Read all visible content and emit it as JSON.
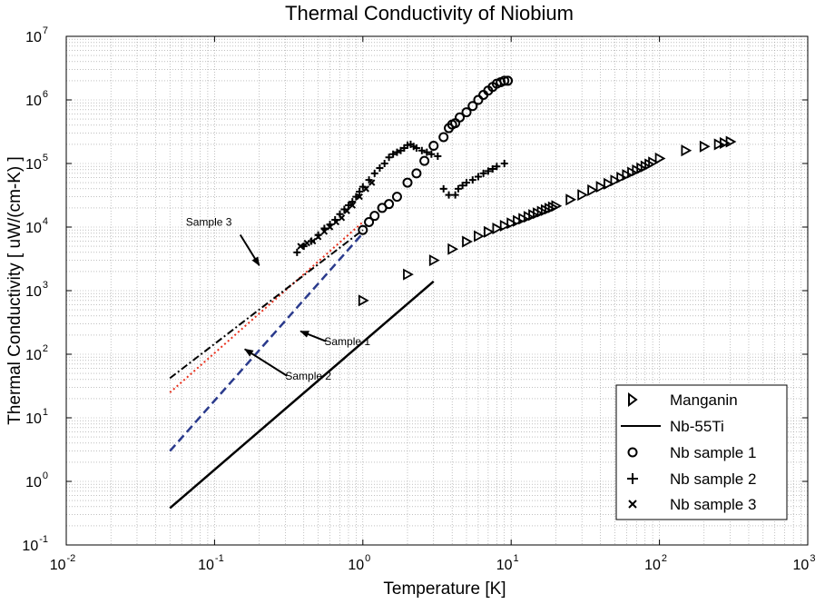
{
  "chart_data": {
    "type": "scatter",
    "title": "Thermal Conductivity of Niobium",
    "xlabel": "Temperature [K]",
    "ylabel": "Thermal Conductivity [ uW/(cm-K) ]",
    "xscale": "log",
    "yscale": "log",
    "xlim": [
      0.01,
      1000
    ],
    "ylim": [
      0.1,
      10000000
    ],
    "x_ticks": [
      {
        "base": "10",
        "exp": "-2"
      },
      {
        "base": "10",
        "exp": "-1"
      },
      {
        "base": "10",
        "exp": "0"
      },
      {
        "base": "10",
        "exp": "1"
      },
      {
        "base": "10",
        "exp": "2"
      },
      {
        "base": "10",
        "exp": "3"
      }
    ],
    "y_ticks": [
      {
        "base": "10",
        "exp": "-1"
      },
      {
        "base": "10",
        "exp": "0"
      },
      {
        "base": "10",
        "exp": "1"
      },
      {
        "base": "10",
        "exp": "2"
      },
      {
        "base": "10",
        "exp": "3"
      },
      {
        "base": "10",
        "exp": "4"
      },
      {
        "base": "10",
        "exp": "5"
      },
      {
        "base": "10",
        "exp": "6"
      },
      {
        "base": "10",
        "exp": "7"
      }
    ],
    "grid": true,
    "legend_position": "bottom-right",
    "legend": [
      {
        "label": "Manganin",
        "marker": "triangle-right"
      },
      {
        "label": "Nb-55Ti",
        "marker": "solid-line"
      },
      {
        "label": "Nb sample 1",
        "marker": "circle"
      },
      {
        "label": "Nb sample 2",
        "marker": "plus"
      },
      {
        "label": "Nb sample 3",
        "marker": "x"
      }
    ],
    "series": [
      {
        "name": "Manganin",
        "style": "triangle-right",
        "color": "#000000",
        "x": [
          1.0,
          2.0,
          3.0,
          4.0,
          5.0,
          6.0,
          7.0,
          8.0,
          9.0,
          10.0,
          11.0,
          12.0,
          13.0,
          14.0,
          15.0,
          16.0,
          17.0,
          18.0,
          19.0,
          20.0,
          25.0,
          30.0,
          35.0,
          40.0,
          45.0,
          50.0,
          55.0,
          60.0,
          65.0,
          70.0,
          75.0,
          80.0,
          85.0,
          90.0,
          100.0,
          150.0,
          200.0,
          250.0,
          273.0,
          300.0
        ],
        "y": [
          700,
          1800,
          3000,
          4500,
          5900,
          7200,
          8400,
          9500,
          10500,
          11500,
          12500,
          13500,
          14500,
          15500,
          16500,
          17500,
          18500,
          19500,
          20500,
          21500,
          27000,
          32000,
          38000,
          43000,
          48000,
          54000,
          60000,
          66000,
          72000,
          78000,
          84000,
          90000,
          97000,
          104000,
          120000,
          160000,
          185000,
          200000,
          210000,
          220000
        ]
      },
      {
        "name": "Nb-55Ti",
        "style": "solid",
        "color": "#000000",
        "x": [
          0.05,
          3.0
        ],
        "y": [
          0.38,
          1400
        ]
      },
      {
        "name": "Nb sample 1",
        "style": "circle",
        "color": "#000000",
        "x": [
          1.0,
          1.1,
          1.2,
          1.35,
          1.5,
          1.7,
          2.0,
          2.3,
          2.6,
          3.0,
          3.5,
          3.8,
          4.0,
          4.2,
          4.5,
          5.0,
          5.5,
          6.0,
          6.5,
          7.0,
          7.5,
          8.0,
          8.5,
          9.0,
          9.5
        ],
        "y": [
          9000,
          12000,
          15000,
          20000,
          23000,
          30000,
          50000,
          70000,
          110000,
          190000,
          260000,
          360000,
          410000,
          430000,
          530000,
          640000,
          800000,
          1000000,
          1200000,
          1400000,
          1600000,
          1800000,
          1900000,
          2000000,
          2000000
        ]
      },
      {
        "name": "Nb sample 2",
        "style": "plus",
        "color": "#000000",
        "x": [
          0.36,
          0.4,
          0.45,
          0.5,
          0.55,
          0.6,
          0.65,
          0.7,
          0.75,
          0.8,
          0.85,
          0.9,
          0.95,
          1.0,
          1.1,
          1.2,
          1.3,
          1.4,
          1.5,
          1.6,
          1.7,
          1.8,
          1.9,
          2.0,
          2.1,
          2.2,
          2.3,
          2.5,
          2.7,
          2.9,
          3.2,
          3.5,
          3.8,
          4.2,
          4.4,
          4.7,
          5.0,
          5.5,
          6.0,
          6.5,
          7.0,
          7.5,
          8.0,
          9.0
        ],
        "y": [
          4000,
          5000,
          6000,
          7500,
          9500,
          11000,
          13000,
          16000,
          19000,
          22000,
          25000,
          30000,
          36000,
          43000,
          55000,
          70000,
          85000,
          100000,
          125000,
          140000,
          150000,
          160000,
          175000,
          195000,
          200000,
          185000,
          175000,
          160000,
          150000,
          140000,
          130000,
          40000,
          32000,
          32000,
          40000,
          45000,
          50000,
          55000,
          62000,
          70000,
          76000,
          82000,
          90000,
          100000
        ]
      },
      {
        "name": "Nb sample 3",
        "style": "x",
        "color": "#000000",
        "x": [
          0.38,
          0.42,
          0.46,
          0.5,
          0.55,
          0.6,
          0.66,
          0.72,
          0.78,
          0.85,
          0.95,
          1.05,
          1.15
        ],
        "y": [
          5000,
          5600,
          6000,
          7000,
          8500,
          10000,
          12000,
          14000,
          18000,
          22000,
          30000,
          40000,
          50000
        ]
      },
      {
        "name": "Sample 3",
        "style": "dotted",
        "color": "#e8301c",
        "x": [
          0.05,
          1.0
        ],
        "y": [
          25,
          12000
        ]
      },
      {
        "name": "Sample 2",
        "style": "dashdot",
        "color": "#000000",
        "x": [
          0.05,
          1.0
        ],
        "y": [
          42,
          9000
        ]
      },
      {
        "name": "Sample 1",
        "style": "dashed",
        "color": "#2a3a8c",
        "x": [
          0.05,
          1.0
        ],
        "y": [
          3,
          8000
        ]
      }
    ],
    "annotations": [
      {
        "text": "Sample 3",
        "x": 0.064,
        "y": 10500,
        "target_x": 0.2,
        "target_y": 2500
      },
      {
        "text": "Sample 1",
        "x": 0.55,
        "y": 140,
        "target_x": 0.38,
        "target_y": 230
      },
      {
        "text": "Sample 2",
        "x": 0.3,
        "y": 40,
        "target_x": 0.16,
        "target_y": 120
      }
    ]
  }
}
